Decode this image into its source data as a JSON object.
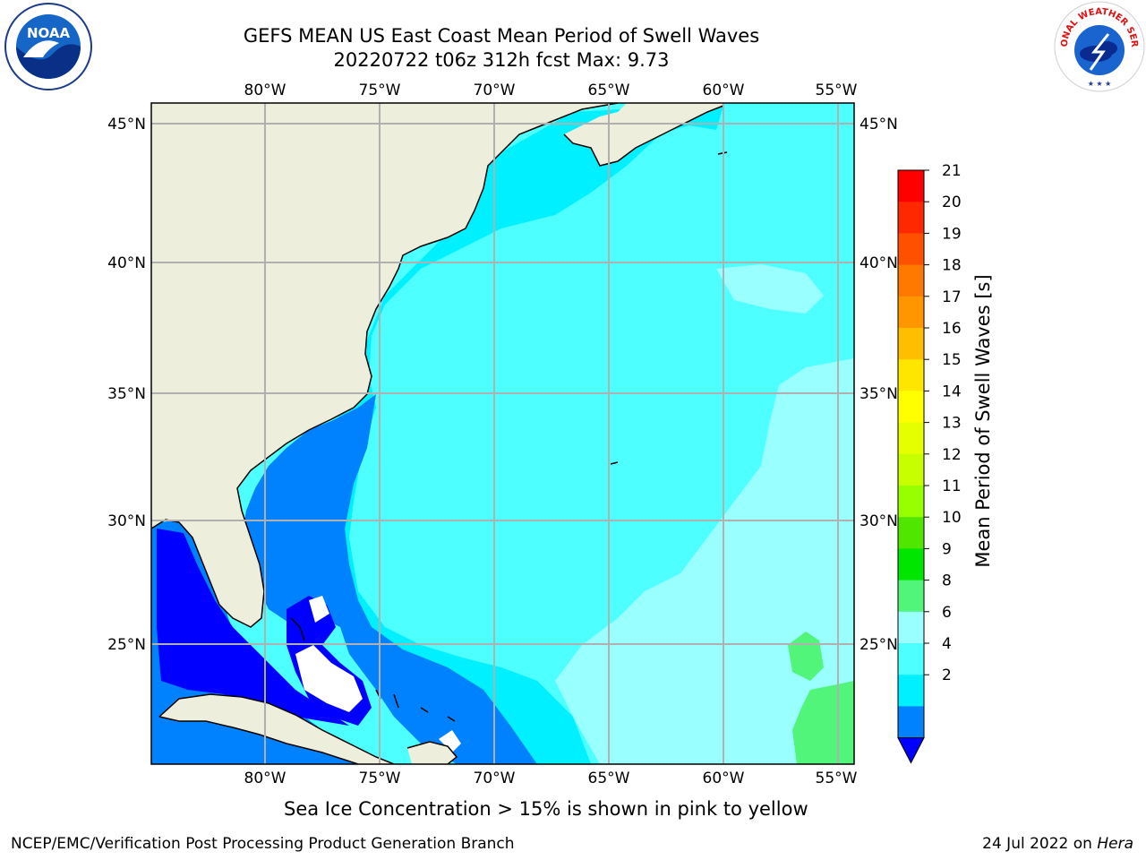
{
  "title_line1": "GEFS MEAN US East Coast Mean Period of Swell Waves",
  "title_line2": "20220722 t06z 312h fcst   Max: 9.73",
  "logos": {
    "left": "NOAA",
    "right": "NATIONAL WEATHER SERVICE"
  },
  "map": {
    "lon_ticks": [
      "80°W",
      "75°W",
      "70°W",
      "65°W",
      "60°W",
      "55°W"
    ],
    "lat_ticks": [
      "45°N",
      "40°N",
      "35°N",
      "30°N",
      "25°N"
    ],
    "colors": {
      "land": "#eeeedc",
      "ocean_base": "#4dffff",
      "coast": "#000000",
      "grid": "#b0b0b0"
    }
  },
  "colorbar": {
    "label": "Mean Period of Swell Waves [s]",
    "ticks": [
      "21",
      "20",
      "19",
      "18",
      "17",
      "16",
      "15",
      "14",
      "13",
      "12",
      "11",
      "10",
      "9",
      "8",
      "6",
      "4",
      "2"
    ],
    "colors": [
      "#ff0000",
      "#ff2800",
      "#ff5000",
      "#ff7800",
      "#ff9600",
      "#ffbe00",
      "#ffe600",
      "#ffff00",
      "#e6ff00",
      "#c8ff00",
      "#96ff00",
      "#50e600",
      "#00e600",
      "#50f57a",
      "#99ffff",
      "#4dffff",
      "#00f0ff",
      "#0082ff"
    ],
    "extend_color": "#0000ff"
  },
  "note": "Sea Ice Concentration > 15% is shown in pink to yellow",
  "footer": {
    "left": "NCEP/EMC/Verification Post Processing Product Generation Branch",
    "date": "24 Jul 2022 on ",
    "machine": "Hera"
  }
}
